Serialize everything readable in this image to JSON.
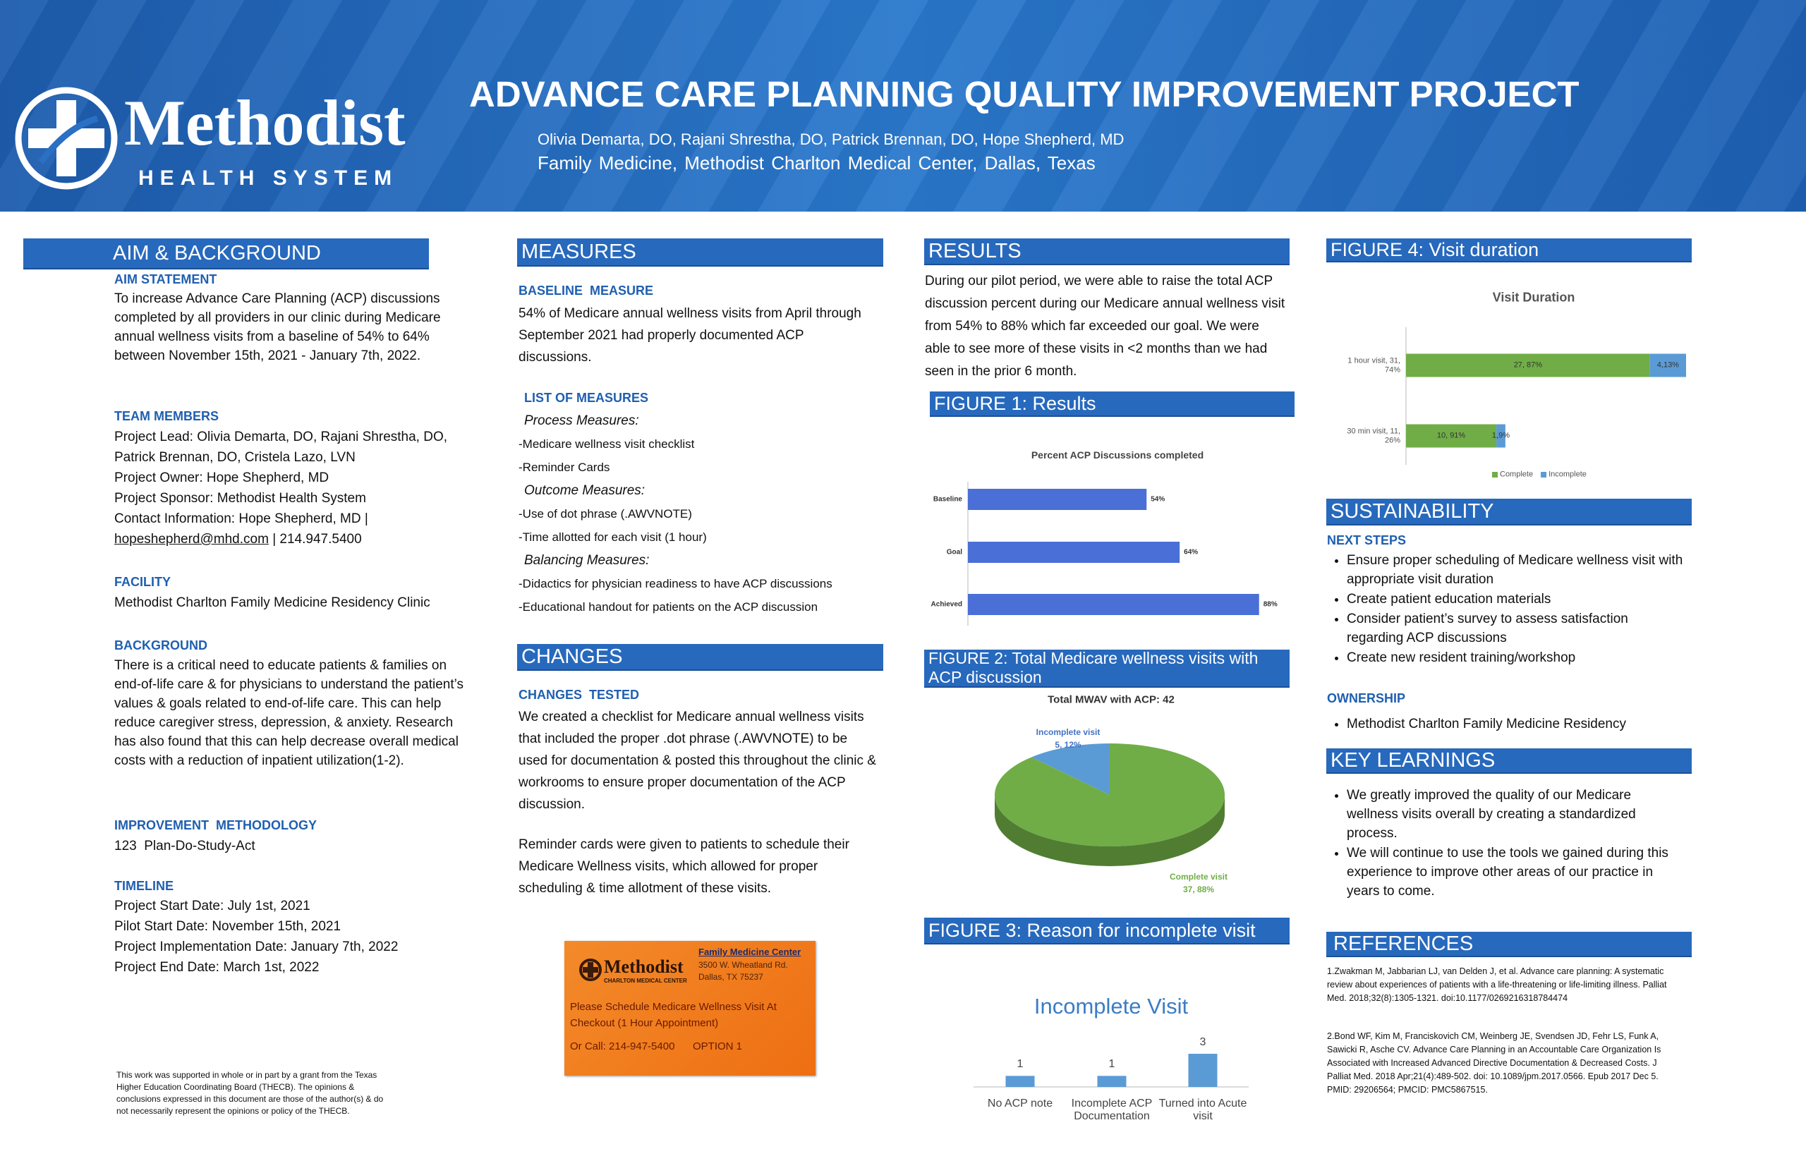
{
  "header": {
    "logo_name": "Methodist",
    "logo_subtitle": "HEALTH SYSTEM",
    "title": "ADVANCE CARE PLANNING QUALITY IMPROVEMENT PROJECT",
    "authors": "Olivia Demarta, DO, Rajani Shrestha, DO,  Patrick Brennan, DO, Hope Shepherd, MD",
    "affiliation": "Family Medicine, Methodist Charlton Medical Center, Dallas, Texas"
  },
  "aim_background": {
    "heading": "AIM & BACKGROUND",
    "aim_statement": {
      "heading": "AIM STATEMENT",
      "text": "To increase Advance Care Planning (ACP) discussions completed by all providers in our clinic during Medicare annual wellness visits from a baseline of 54% to 64% between November 15th, 2021 - January 7th, 2022."
    },
    "team_members": {
      "heading": "TEAM MEMBERS",
      "lines": [
        "Project Lead: Olivia Demarta, DO, Rajani Shrestha, DO, Patrick Brennan, DO, Cristela Lazo, LVN",
        "Project Owner: Hope Shepherd, MD",
        "Project Sponsor: Methodist Health System",
        "Contact Information: Hope Shepherd, MD |"
      ],
      "email": "hopeshepherd@mhd.com",
      "phone": "|  214.947.5400"
    },
    "facility": {
      "heading": "FACILITY",
      "text": "Methodist Charlton Family Medicine Residency Clinic"
    },
    "background": {
      "heading": "BACKGROUND",
      "text": "There is a critical need to educate patients & families on end-of-life care & for physicians to understand  the patient’s values & goals related to end-of-life care. This can help reduce caregiver stress, depression, & anxiety. Research has also found that this can help decrease overall medical costs with a reduction of inpatient utilization(1-2)."
    },
    "methodology": {
      "heading": "IMPROVEMENT  METHODOLOGY",
      "text": "123  Plan-Do-Study-Act"
    },
    "timeline": {
      "heading": "TIMELINE",
      "lines": [
        "Project Start Date: July 1st, 2021",
        "Pilot Start Date: November 15th, 2021",
        "Project Implementation Date: January 7th, 2022",
        "Project End Date: March 1st, 2022"
      ]
    }
  },
  "funding_note": "This work was supported in whole or in part by a grant from the Texas Higher Education Coordinating Board (THECB). The opinions & conclusions expressed in this document are those of the author(s) & do not necessarily represent the opinions or policy of the THECB.",
  "measures": {
    "heading": "MEASURES",
    "baseline": {
      "heading": "BASELINE  MEASURE",
      "text": "54% of Medicare annual wellness visits from April through September 2021 had properly documented ACP discussions."
    },
    "list": {
      "heading": "LIST OF MEASURES",
      "groups": [
        {
          "label": "Process Measures:",
          "items": [
            "-Medicare wellness visit checklist",
            "-Reminder Cards"
          ]
        },
        {
          "label": "Outcome Measures:",
          "items": [
            "-Use of dot phrase (.AWVNOTE)",
            "-Time allotted for each visit (1 hour)"
          ]
        },
        {
          "label": "Balancing Measures:",
          "items": [
            "-Didactics for physician readiness to have ACP discussions",
            "-Educational handout for patients on the ACP discussion"
          ]
        }
      ]
    }
  },
  "changes": {
    "heading": "CHANGES",
    "subheading": "CHANGES  TESTED",
    "paragraphs": [
      "We created a checklist for Medicare annual wellness visits that included the proper .dot phrase (.AWVNOTE) to be used for documentation & posted this throughout the clinic & workrooms to ensure proper documentation of the ACP discussion.",
      "Reminder cards were given to patients to schedule their Medicare Wellness visits, which allowed for proper scheduling & time allotment of these visits."
    ]
  },
  "reminder_card": {
    "logo": "Methodist",
    "logo_subtitle": "CHARLTON MEDICAL CENTER",
    "center": "Family Medicine Center",
    "address": [
      "3500 W. Wheatland Rd.",
      "Dallas, TX 75237"
    ],
    "message": "Please Schedule Medicare Wellness Visit At Checkout (1 Hour Appointment)",
    "call": "Or Call: 214-947-5400",
    "option": "OPTION 1"
  },
  "results": {
    "heading": "RESULTS",
    "text": "During our pilot period, we were able to raise the total ACP discussion percent during our Medicare annual wellness visit from 54% to 88% which far exceeded our goal. We were able to see more of these visits in <2 months than we had seen in the prior 6 month."
  },
  "figures": [
    "FIGURE 1: Results",
    "FIGURE 2: Total Medicare wellness visits with ACP discussion",
    "FIGURE 3: Reason for incomplete visit",
    "FIGURE 4: Visit duration"
  ],
  "chart_data": [
    {
      "type": "bar",
      "horizontal": true,
      "title": "Percent ACP Discussions completed",
      "categories": [
        "Baseline",
        "Goal",
        "Achieved"
      ],
      "values": [
        54,
        64,
        88
      ],
      "value_labels": [
        "54%",
        "64%",
        "88%"
      ],
      "color": "#4a6fd6",
      "xlim": [
        0,
        100
      ]
    },
    {
      "type": "pie",
      "title": "Total MWAV with ACP: 42",
      "categories": [
        "Incomplete visit",
        "Complete visit"
      ],
      "values": [
        5,
        37
      ],
      "value_labels": [
        "5, 12%",
        "37, 88%"
      ],
      "colors": [
        "#5b9bd5",
        "#70ad47"
      ]
    },
    {
      "type": "bar",
      "title": "Incomplete Visit",
      "categories": [
        "No ACP note",
        "Incomplete ACP Documentation",
        "Turned into Acute visit"
      ],
      "values": [
        1,
        1,
        3
      ],
      "color": "#5b9bd5",
      "ylim": [
        0,
        3
      ]
    },
    {
      "type": "bar",
      "horizontal": true,
      "stacked": true,
      "title": "Visit Duration",
      "categories": [
        "1 hour visit, 31, 74%",
        "30 min visit, 11, 26%"
      ],
      "series": [
        {
          "name": "Complete",
          "color": "#70ad47",
          "values": [
            27,
            10
          ],
          "value_labels": [
            "27, 87%",
            "10, 91%"
          ]
        },
        {
          "name": "Incomplete",
          "color": "#5b9bd5",
          "values": [
            4,
            1
          ],
          "value_labels": [
            "4,13%",
            "1,9%"
          ]
        }
      ],
      "xlim": [
        0,
        31
      ],
      "legend": "bottom"
    }
  ],
  "sustainability": {
    "heading": "SUSTAINABILITY",
    "next_steps": {
      "heading": "NEXT STEPS",
      "items": [
        "Ensure proper scheduling of Medicare wellness visit with appropriate visit duration",
        "Create patient education materials",
        "Consider patient’s survey to assess satisfaction regarding ACP discussions",
        "Create new resident training/workshop"
      ]
    },
    "ownership": {
      "heading": "OWNERSHIP",
      "items": [
        "Methodist Charlton Family Medicine Residency"
      ]
    }
  },
  "key_learnings": {
    "heading": "KEY LEARNINGS",
    "items": [
      "We greatly improved the quality of our Medicare wellness visits overall by creating a standardized process.",
      "We will continue to use the tools we gained during this experience to improve other areas of our practice in years to come."
    ]
  },
  "references": {
    "heading": "REFERENCES",
    "items": [
      "1.Zwakman M, Jabbarian LJ, van Delden J, et al. Advance care planning: A systematic review about experiences of patients with a life-threatening or life-limiting illness. Palliat Med. 2018;32(8):1305-1321. doi:10.1177/0269216318784474",
      "2.Bond WF, Kim M, Franciskovich CM, Weinberg JE, Svendsen JD, Fehr LS, Funk A, Sawicki R, Asche CV. Advance Care Planning in an Accountable Care Organization Is Associated with Increased Advanced Directive Documentation & Decreased Costs. J Palliat Med. 2018 Apr;21(4):489-502. doi: 10.1089/jpm.2017.0566. Epub 2017 Dec 5. PMID: 29206564; PMCID: PMC5867515."
    ]
  }
}
